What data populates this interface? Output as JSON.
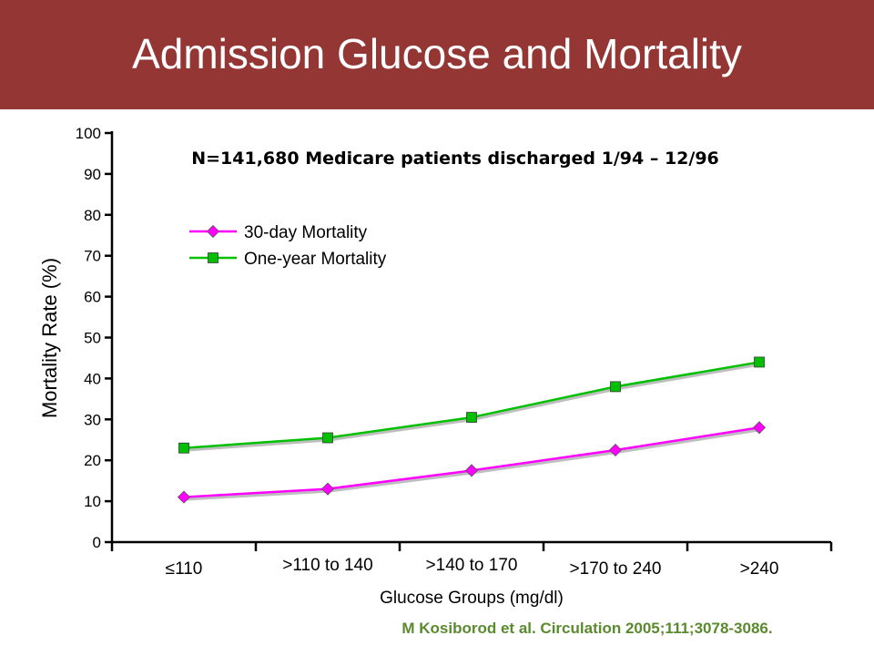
{
  "slide": {
    "title": "Admission Glucose and Mortality",
    "title_bar_color": "#943634",
    "citation": "M Kosiborod et al. Circulation 2005;111;3078-3086.",
    "citation_color": "#5a8a2e"
  },
  "chart_data": {
    "type": "line",
    "subtitle": "N=141,680 Medicare patients discharged 1/94 – 12/96",
    "xlabel": "Glucose Groups (mg/dl)",
    "ylabel": "Mortality Rate (%)",
    "ylim": [
      0,
      100
    ],
    "yticks": [
      0,
      10,
      20,
      30,
      40,
      50,
      60,
      70,
      80,
      90,
      100
    ],
    "grid": false,
    "legend_position": "top-left",
    "categories": [
      "≤110",
      ">110 to 140",
      ">140 to 170",
      ">170 to 240",
      ">240"
    ],
    "series": [
      {
        "name": "30-day Mortality",
        "values": [
          11,
          13,
          17.5,
          22.5,
          28
        ],
        "color": "#ff00ff",
        "marker": "diamond"
      },
      {
        "name": "One-year Mortality",
        "values": [
          23,
          25.5,
          30.5,
          38,
          44
        ],
        "color": "#00c000",
        "marker": "square"
      }
    ]
  }
}
